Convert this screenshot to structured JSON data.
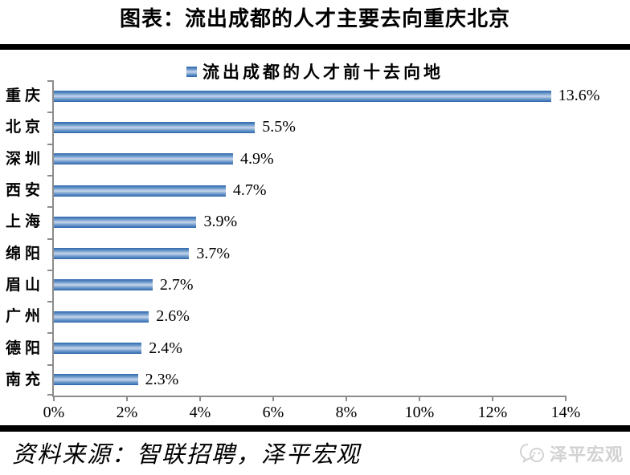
{
  "page": {
    "title": "图表：流出成都的人才主要去向重庆北京"
  },
  "legend": {
    "label": "流出成都的人才前十去向地"
  },
  "chart_data": {
    "type": "bar",
    "orientation": "horizontal",
    "title": "流出成都的人才前十去向地",
    "categories": [
      "重庆",
      "北京",
      "深圳",
      "西安",
      "上海",
      "绵阳",
      "眉山",
      "广州",
      "德阳",
      "南充"
    ],
    "values": [
      13.6,
      5.5,
      4.9,
      4.7,
      3.9,
      3.7,
      2.7,
      2.6,
      2.4,
      2.3
    ],
    "value_labels": [
      "13.6%",
      "5.5%",
      "4.9%",
      "4.7%",
      "3.9%",
      "3.7%",
      "2.7%",
      "2.6%",
      "2.4%",
      "2.3%"
    ],
    "xlabel": "",
    "ylabel": "",
    "xlim": [
      0,
      14
    ],
    "x_tick_labels": [
      "0%",
      "2%",
      "4%",
      "6%",
      "8%",
      "10%",
      "12%",
      "14%"
    ],
    "grid": false,
    "legend_position": "top",
    "bar_color_main": "#4379b8",
    "bar_color_edge": "#2c68ab",
    "bar_color_center": "#cdd9ec"
  },
  "footer": {
    "source": "资料来源：智联招聘，泽平宏观",
    "watermark": "泽平宏观"
  },
  "colors": {
    "axis": "#8c8c8c",
    "divider": "#000000",
    "watermark": "#d2d2d2",
    "text": "#000000",
    "background": "#ffffff"
  }
}
